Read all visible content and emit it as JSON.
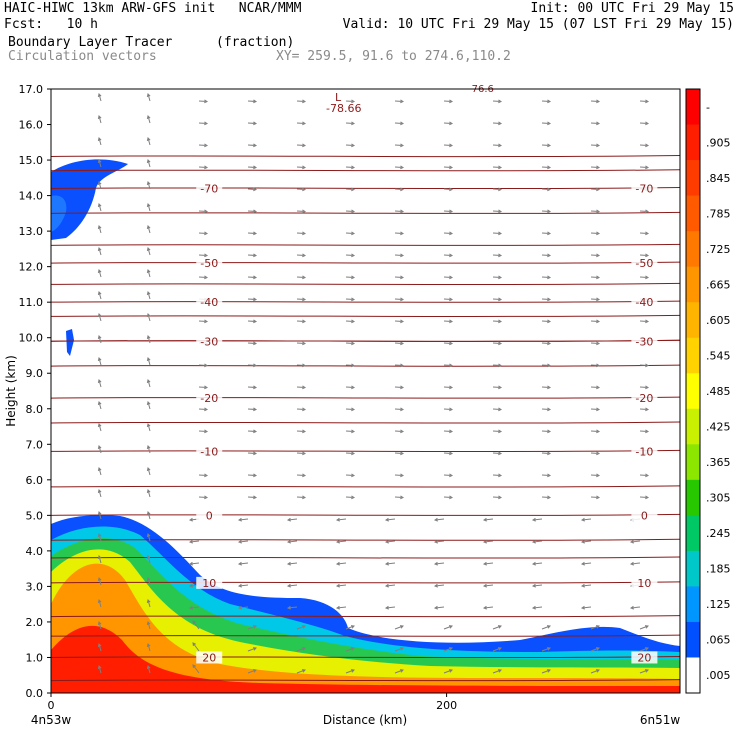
{
  "header": {
    "model_line": "HAIC-HIWC 13km ARW-GFS init   NCAR/MMM",
    "fcst_line": "Fcst:   10 h",
    "init_line": "Init: 00 UTC Fri 29 May 15",
    "valid_line": "Valid: 10 UTC Fri 29 May 15 (07 LST Fri 29 May 15)",
    "field_name": "Boundary Layer Tracer",
    "field_units": "(fraction)",
    "vector_name": "Circulation vectors",
    "xy_range": "XY= 259.5, 91.6 to 274.6,110.2"
  },
  "chart_data": {
    "type": "heatmap",
    "ylabel": "Height (km)",
    "xlabel": "Distance (km)",
    "ylim": [
      0,
      17
    ],
    "xlim": [
      0,
      318
    ],
    "y_ticks": [
      "0.0",
      "1.0",
      "2.0",
      "3.0",
      "4.0",
      "5.0",
      "6.0",
      "7.0",
      "8.0",
      "9.0",
      "10.0",
      "11.0",
      "12.0",
      "13.0",
      "14.0",
      "15.0",
      "16.0",
      "17.0"
    ],
    "x_ticks": [
      {
        "value": 0,
        "label": "0"
      },
      {
        "value": 200,
        "label": "200"
      }
    ],
    "x_start_label": "4n53w",
    "x_end_label": "6n51w",
    "colorbar_labels": [
      "-",
      ".905",
      ".845",
      ".785",
      ".725",
      ".665",
      ".605",
      ".545",
      ".485",
      ".425",
      ".365",
      ".305",
      ".245",
      ".185",
      ".125",
      ".065",
      ".005"
    ],
    "colorbar_colors": [
      "#ff0000",
      "#ff1e00",
      "#ff3c00",
      "#ff5a00",
      "#ff7800",
      "#ff9600",
      "#ffb400",
      "#ffd200",
      "#ffff00",
      "#c8f000",
      "#8ce600",
      "#28c800",
      "#00c864",
      "#00c8c8",
      "#0096ff",
      "#0050ff",
      "#ffffff"
    ],
    "temperature_contours": [
      {
        "label": "-70",
        "y": 14.2
      },
      {
        "label": "-50",
        "y": 12.1
      },
      {
        "label": "-40",
        "y": 11.0
      },
      {
        "label": "-30",
        "y": 9.9
      },
      {
        "label": "-20",
        "y": 8.3
      },
      {
        "label": "-10",
        "y": 6.8
      },
      {
        "label": "0",
        "y": 5.0
      },
      {
        "label": "10",
        "y": 3.1
      },
      {
        "label": "20",
        "y": 1.0
      }
    ],
    "low_marker": {
      "symbol": "L",
      "value": "-78.66"
    },
    "top_value": "-76.6"
  },
  "colors": {
    "contour": "#8b1a1a",
    "vector": "#7f7f7f"
  }
}
